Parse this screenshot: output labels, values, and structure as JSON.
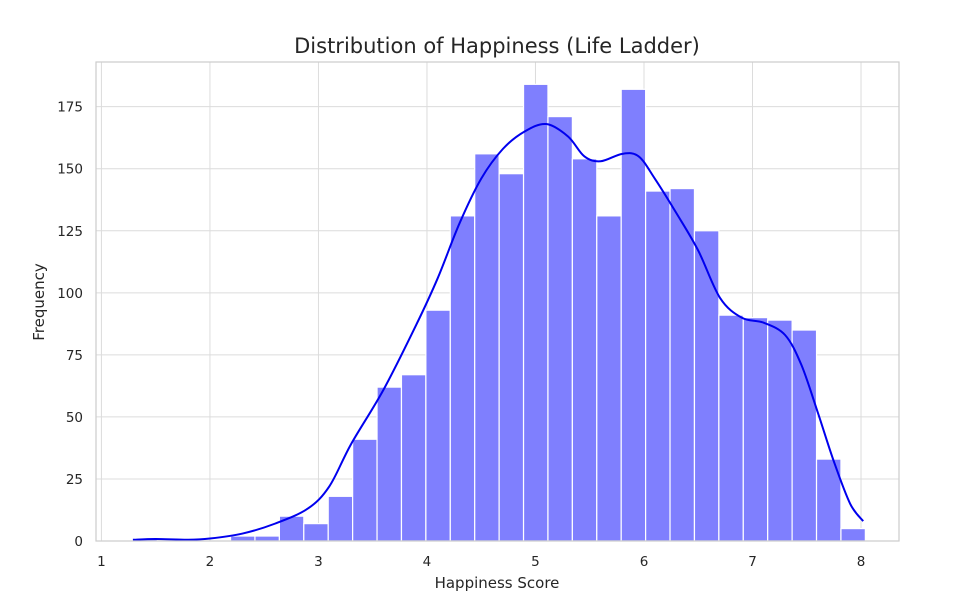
{
  "chart_data": {
    "type": "bar",
    "title": "Distribution of Happiness (Life Ladder)",
    "xlabel": "Happiness Score",
    "ylabel": "Frequency",
    "xlim": [
      0.95,
      8.35
    ],
    "ylim": [
      0,
      193
    ],
    "xticks": [
      1,
      2,
      3,
      4,
      5,
      6,
      7,
      8
    ],
    "xtick_labels": [
      "1",
      "2",
      "3",
      "4",
      "5",
      "6",
      "7",
      "8"
    ],
    "yticks": [
      0,
      25,
      50,
      75,
      100,
      125,
      150,
      175
    ],
    "ytick_labels": [
      "0",
      "25",
      "50",
      "75",
      "100",
      "125",
      "150",
      "175"
    ],
    "grid": true,
    "bins": [
      {
        "x0": 1.29,
        "x1": 1.515,
        "count": 1
      },
      {
        "x0": 1.515,
        "x1": 1.74,
        "count": 0
      },
      {
        "x0": 1.74,
        "x1": 1.965,
        "count": 0
      },
      {
        "x0": 1.965,
        "x1": 2.19,
        "count": 0
      },
      {
        "x0": 2.19,
        "x1": 2.415,
        "count": 2
      },
      {
        "x0": 2.415,
        "x1": 2.64,
        "count": 2
      },
      {
        "x0": 2.64,
        "x1": 2.865,
        "count": 10
      },
      {
        "x0": 2.865,
        "x1": 3.09,
        "count": 7
      },
      {
        "x0": 3.09,
        "x1": 3.315,
        "count": 18
      },
      {
        "x0": 3.315,
        "x1": 3.54,
        "count": 41
      },
      {
        "x0": 3.54,
        "x1": 3.765,
        "count": 62
      },
      {
        "x0": 3.765,
        "x1": 3.99,
        "count": 67
      },
      {
        "x0": 3.99,
        "x1": 4.215,
        "count": 93
      },
      {
        "x0": 4.215,
        "x1": 4.44,
        "count": 131
      },
      {
        "x0": 4.44,
        "x1": 4.665,
        "count": 156
      },
      {
        "x0": 4.665,
        "x1": 4.89,
        "count": 148
      },
      {
        "x0": 4.89,
        "x1": 5.115,
        "count": 184
      },
      {
        "x0": 5.115,
        "x1": 5.34,
        "count": 171
      },
      {
        "x0": 5.34,
        "x1": 5.565,
        "count": 154
      },
      {
        "x0": 5.565,
        "x1": 5.79,
        "count": 131
      },
      {
        "x0": 5.79,
        "x1": 6.015,
        "count": 182
      },
      {
        "x0": 6.015,
        "x1": 6.24,
        "count": 141
      },
      {
        "x0": 6.24,
        "x1": 6.465,
        "count": 142
      },
      {
        "x0": 6.465,
        "x1": 6.69,
        "count": 125
      },
      {
        "x0": 6.69,
        "x1": 6.915,
        "count": 91
      },
      {
        "x0": 6.915,
        "x1": 7.14,
        "count": 90
      },
      {
        "x0": 7.14,
        "x1": 7.365,
        "count": 89
      },
      {
        "x0": 7.365,
        "x1": 7.59,
        "count": 85
      },
      {
        "x0": 7.59,
        "x1": 7.815,
        "count": 33
      },
      {
        "x0": 7.815,
        "x1": 8.04,
        "count": 5
      }
    ],
    "kde": {
      "x": [
        1.29,
        1.5,
        1.8,
        2.0,
        2.3,
        2.6,
        2.9,
        3.1,
        3.3,
        3.6,
        3.9,
        4.1,
        4.3,
        4.5,
        4.7,
        4.9,
        5.1,
        5.3,
        5.45,
        5.6,
        5.8,
        5.95,
        6.1,
        6.3,
        6.5,
        6.7,
        6.9,
        7.1,
        7.3,
        7.45,
        7.6,
        7.75,
        7.9,
        8.02
      ],
      "y": [
        0.5,
        0.8,
        0.5,
        1,
        3,
        7,
        13,
        22,
        39,
        61,
        87,
        106,
        128,
        146,
        158,
        165,
        168,
        163,
        155,
        153,
        156,
        155,
        146,
        132,
        117,
        98,
        90,
        88,
        83,
        71,
        52,
        32,
        15,
        8
      ]
    },
    "colors": {
      "bar_fill": "#7f7ffe",
      "bar_edge": "#ffffff",
      "kde_line": "#0000ee",
      "grid": "#dcdcdc",
      "text": "#262626"
    }
  }
}
